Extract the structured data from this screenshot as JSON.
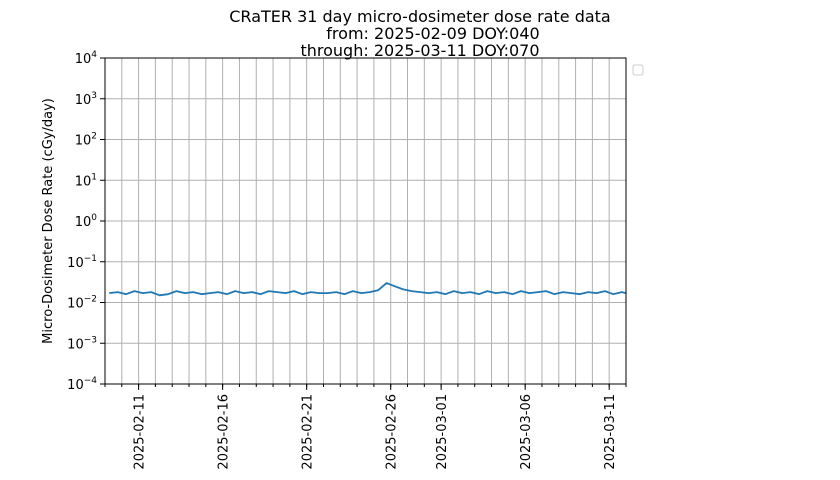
{
  "chart_data": {
    "type": "line",
    "title": [
      "CRaTER 31 day micro-dosimeter dose rate data",
      "from: 2025-02-09 DOY:040",
      "through: 2025-03-11 DOY:070"
    ],
    "xlabel": "",
    "ylabel": "Micro-Dosimeter Dose Rate (cGy/day)",
    "yscale": "log",
    "ylim": [
      0.0001,
      10000
    ],
    "y_tick_values": [
      0.0001,
      0.001,
      0.01,
      0.1,
      1,
      10,
      100,
      1000,
      10000
    ],
    "y_tick_bases": [
      "10",
      "10",
      "10",
      "10",
      "10",
      "10",
      "10",
      "10",
      "10"
    ],
    "y_tick_exponents": [
      "−4",
      "−3",
      "−2",
      "−1",
      "0",
      "1",
      "2",
      "3",
      "4"
    ],
    "xlim": [
      "2025-02-09",
      "2025-03-12"
    ],
    "x_tick_labels": [
      "2025-02-11",
      "2025-02-16",
      "2025-02-21",
      "2025-02-26",
      "2025-03-01",
      "2025-03-06",
      "2025-03-11"
    ],
    "x_minor_dates": [
      "2025-02-09",
      "2025-02-10",
      "2025-02-11",
      "2025-02-12",
      "2025-02-13",
      "2025-02-14",
      "2025-02-15",
      "2025-02-16",
      "2025-02-17",
      "2025-02-18",
      "2025-02-19",
      "2025-02-20",
      "2025-02-21",
      "2025-02-22",
      "2025-02-23",
      "2025-02-24",
      "2025-02-25",
      "2025-02-26",
      "2025-02-27",
      "2025-02-28",
      "2025-03-01",
      "2025-03-02",
      "2025-03-03",
      "2025-03-04",
      "2025-03-05",
      "2025-03-06",
      "2025-03-07",
      "2025-03-08",
      "2025-03-09",
      "2025-03-10",
      "2025-03-11",
      "2025-03-12"
    ],
    "grid": true,
    "legend": "empty box, outside right of plot at top",
    "colors": {
      "line": "#1f77b4",
      "grid": "#b0b0b0"
    },
    "series": [
      {
        "x": [
          "2025-02-09",
          "2025-02-09",
          "2025-02-10",
          "2025-02-10",
          "2025-02-11",
          "2025-02-11",
          "2025-02-12",
          "2025-02-12",
          "2025-02-13",
          "2025-02-13",
          "2025-02-14",
          "2025-02-14",
          "2025-02-15",
          "2025-02-15",
          "2025-02-16",
          "2025-02-16",
          "2025-02-17",
          "2025-02-17",
          "2025-02-18",
          "2025-02-18",
          "2025-02-19",
          "2025-02-19",
          "2025-02-20",
          "2025-02-20",
          "2025-02-21",
          "2025-02-21",
          "2025-02-22",
          "2025-02-22",
          "2025-02-23",
          "2025-02-23",
          "2025-02-24",
          "2025-02-24",
          "2025-02-25",
          "2025-02-25",
          "2025-02-26",
          "2025-02-26",
          "2025-02-27",
          "2025-02-27",
          "2025-02-28",
          "2025-02-28",
          "2025-03-01",
          "2025-03-01",
          "2025-03-02",
          "2025-03-02",
          "2025-03-03",
          "2025-03-03",
          "2025-03-04",
          "2025-03-04",
          "2025-03-05",
          "2025-03-05",
          "2025-03-06",
          "2025-03-06",
          "2025-03-07",
          "2025-03-07",
          "2025-03-08",
          "2025-03-08",
          "2025-03-09",
          "2025-03-09",
          "2025-03-10",
          "2025-03-10",
          "2025-03-11",
          "2025-03-11",
          "2025-03-12"
        ],
        "values": [
          0.017,
          0.018,
          0.016,
          0.019,
          0.017,
          0.018,
          0.015,
          0.016,
          0.019,
          0.017,
          0.018,
          0.016,
          0.017,
          0.018,
          0.016,
          0.019,
          0.017,
          0.018,
          0.016,
          0.019,
          0.018,
          0.017,
          0.019,
          0.016,
          0.018,
          0.017,
          0.017,
          0.018,
          0.016,
          0.019,
          0.017,
          0.018,
          0.02,
          0.03,
          0.025,
          0.021,
          0.019,
          0.018,
          0.017,
          0.018,
          0.016,
          0.019,
          0.017,
          0.018,
          0.016,
          0.019,
          0.017,
          0.018,
          0.016,
          0.019,
          0.017,
          0.018,
          0.019,
          0.016,
          0.018,
          0.017,
          0.016,
          0.018,
          0.017,
          0.019,
          0.016,
          0.018,
          0.017
        ]
      }
    ]
  }
}
